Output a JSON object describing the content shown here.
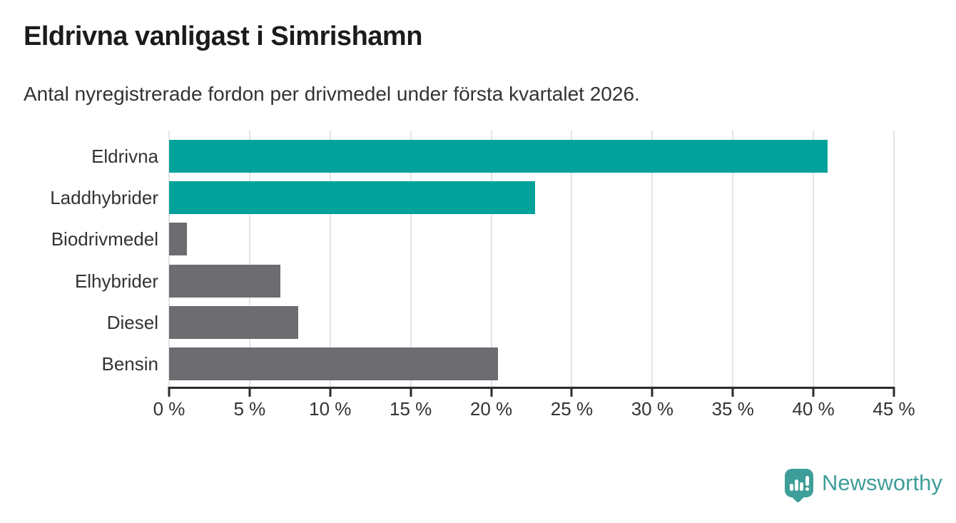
{
  "header": {
    "title": "Eldrivna vanligast i Simrishamn",
    "subtitle": "Antal nyregistrerade fordon per drivmedel under första kvartalet 2026."
  },
  "chart_data": {
    "type": "bar",
    "orientation": "horizontal",
    "title": "Eldrivna vanligast i Simrishamn",
    "subtitle": "Antal nyregistrerade fordon per drivmedel under första kvartalet 2026.",
    "categories": [
      "Eldrivna",
      "Laddhybrider",
      "Biodrivmedel",
      "Elhybrider",
      "Diesel",
      "Bensin"
    ],
    "values": [
      40.9,
      22.7,
      1.1,
      6.9,
      8.0,
      20.4
    ],
    "unit": "%",
    "xlim": [
      0,
      45
    ],
    "x_tick_step": 5,
    "x_tick_labels": [
      "0 %",
      "5 %",
      "10 %",
      "15 %",
      "20 %",
      "25 %",
      "30 %",
      "35 %",
      "40 %",
      "45 %"
    ],
    "bar_colors": [
      "#00a29a",
      "#00a29a",
      "#6c6c71",
      "#6c6c71",
      "#6c6c71",
      "#6c6c71"
    ],
    "highlight_color": "#00a29a",
    "default_color": "#6c6c71",
    "grid": true,
    "legend_position": "none",
    "xlabel": "",
    "ylabel": ""
  },
  "colors": {
    "teal": "#00a29a",
    "gray": "#6c6c71",
    "axis": "#2b2b2b",
    "gridline": "#e4e4e4",
    "title_text": "#1b1b1b",
    "body_text": "#333333",
    "brand": "#3f9e99"
  },
  "branding": {
    "logo_text": "Newsworthy",
    "logo_icon": "newsworthy-bar-chart-bubble-icon"
  }
}
